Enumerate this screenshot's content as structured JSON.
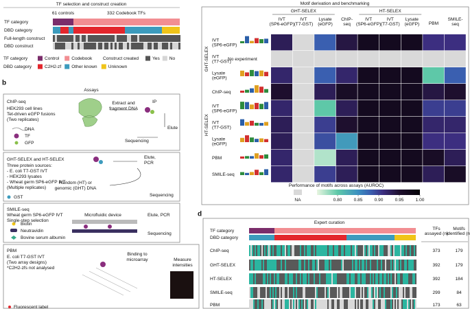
{
  "panel_a": {
    "title": "TF selection and construct creation",
    "controls_label": "61 controls",
    "codebook_label": "332 Codebook TFs",
    "rows": [
      "TF category",
      "DBD category",
      "Full-length construct",
      "DBD construct"
    ],
    "legend": {
      "tf_category": {
        "title": "TF category",
        "items": [
          {
            "label": "Control",
            "color": "#7b2d6b"
          },
          {
            "label": "Codebook",
            "color": "#f28e92"
          }
        ]
      },
      "construct": {
        "title": "Construct created",
        "items": [
          {
            "label": "Yes",
            "color": "#555555"
          },
          {
            "label": "No",
            "color": "#d6d6d6"
          }
        ]
      },
      "dbd_category": {
        "title": "DBD category",
        "items": [
          {
            "label": "C2H2-zf",
            "color": "#e3262c"
          },
          {
            "label": "Other known",
            "color": "#3c9bbd"
          },
          {
            "label": "Unknown",
            "color": "#f0c419"
          }
        ]
      }
    }
  },
  "panel_b": {
    "label": "b",
    "title": "Assays",
    "chip": {
      "title": "ChIP-seq",
      "lines": [
        "HEK293 cell lines",
        "Tet-driven eGFP fusions",
        "(Two replicates)"
      ],
      "legend": [
        "DNA",
        "TF",
        "GFP"
      ],
      "step_extract": [
        "Extract and",
        "fragment DNA"
      ],
      "step_ip": "IP",
      "step_elute": "Elute",
      "step_seq": "Sequencing"
    },
    "selex": {
      "title": "GHT-SELEX and HT-SELEX",
      "lines": [
        "Three protein sources:",
        "- E. coli T7-GST IVT",
        "- HEK293 lysates",
        "- Wheat germ SP6-eGFP IVT",
        "(Multiple replicates)"
      ],
      "legend": [
        "GST"
      ],
      "step_elute": [
        "Elute,",
        "PCR"
      ],
      "step_dna": [
        "Random (HT) or",
        "genomic (GHT) DNA"
      ],
      "step_seq": "Sequencing"
    },
    "smile": {
      "title": "SMILE-seq",
      "lines": [
        "Wheat germ SP6-eGFP IVT",
        "Single-step selection"
      ],
      "device": "Microfluidic device",
      "step_elute": "Elute, PCR",
      "step_seq": "Sequencing",
      "legend": [
        "Biotin",
        "Neutravidin",
        "Bovine serum albumin"
      ]
    },
    "pbm": {
      "title": "PBM",
      "lines": [
        "E. coli T7-GST IVT",
        "(Two array designs)",
        "*C2H2-zfs not analysed"
      ],
      "step_bind": [
        "Binding to",
        "microarray"
      ],
      "step_measure": [
        "Measure",
        "intensities"
      ],
      "legend": [
        "Fluorescent label"
      ]
    }
  },
  "panel_c": {
    "title": "Motif derivation and benchmarking",
    "column_groups": [
      "GHT-SELEX",
      "HT-SELEX"
    ],
    "columns": [
      [
        "IVT",
        "(SP6-eGFP)"
      ],
      [
        "IVT",
        "(T7-GST)"
      ],
      [
        "Lysate",
        "(eGFP)"
      ],
      [
        "ChIP-",
        "seq"
      ],
      [
        "IVT",
        "(SP6-eGFP)"
      ],
      [
        "IVT",
        "(T7-GST)"
      ],
      [
        "Lysate",
        "(eGFP)"
      ],
      [
        "PBM"
      ],
      [
        "SMILE-",
        "seq"
      ]
    ],
    "row_groups": [
      "GHT-SELEX",
      "HT-SELEX"
    ],
    "rows": [
      [
        "IVT",
        "(SP6-eGFP)"
      ],
      [
        "IVT",
        "(T7-GST)"
      ],
      [
        "Lysate",
        "(eGFP)"
      ],
      [
        "ChIP-seq"
      ],
      [
        "IVT",
        "(SP6-eGFP)"
      ],
      [
        "IVT",
        "(T7-GST)"
      ],
      [
        "Lysate",
        "(eGFP)"
      ],
      [
        "PBM"
      ],
      [
        "SMILE-seq"
      ]
    ],
    "no_experiment": "No experiment",
    "values": [
      [
        0.93,
        null,
        0.88,
        0.94,
        0.97,
        0.97,
        0.97,
        0.91,
        0.91
      ],
      [
        null,
        null,
        null,
        null,
        null,
        null,
        null,
        null,
        null
      ],
      [
        0.92,
        null,
        0.88,
        0.92,
        0.97,
        0.97,
        0.97,
        0.8,
        0.88
      ],
      [
        0.95,
        null,
        0.93,
        0.96,
        0.97,
        0.97,
        0.97,
        0.94,
        0.95
      ],
      [
        0.92,
        null,
        0.8,
        0.93,
        0.97,
        0.97,
        0.97,
        0.9,
        0.9
      ],
      [
        0.93,
        null,
        0.9,
        0.95,
        0.97,
        0.97,
        0.97,
        0.92,
        0.92
      ],
      [
        0.93,
        null,
        0.89,
        0.84,
        0.97,
        0.97,
        0.97,
        0.91,
        0.91
      ],
      [
        0.92,
        null,
        0.77,
        0.93,
        0.97,
        0.97,
        0.97,
        0.96,
        0.93
      ],
      [
        0.92,
        null,
        0.9,
        0.93,
        0.97,
        0.97,
        0.97,
        0.93,
        0.96
      ]
    ],
    "colorbar": {
      "title": "Performance of motifs across assays (AUROC)",
      "na_label": "NA",
      "na_color": "#d9d9d9",
      "range": [
        0.75,
        1.0
      ],
      "ticks": [
        {
          "value": 0.8,
          "label": "0.80"
        },
        {
          "value": 0.85,
          "label": "0.85"
        },
        {
          "value": 0.9,
          "label": "0.90"
        },
        {
          "value": 0.95,
          "label": "0.95"
        },
        {
          "value": 1,
          "label": "1.00"
        }
      ]
    }
  },
  "panel_d": {
    "label": "d",
    "title": "Expert curation",
    "rows": [
      "TF category",
      "DBD category",
      "ChIP-seq",
      "GHT-SELEX",
      "HT-SELEX",
      "SMILE-seq",
      "PBM"
    ],
    "table_header": [
      [
        "TFs",
        "assayed (n)"
      ],
      [
        "Motifs",
        "identified (n)"
      ]
    ],
    "table": [
      [
        373,
        179
      ],
      [
        392,
        179
      ],
      [
        392,
        184
      ],
      [
        299,
        84
      ],
      [
        173,
        63
      ]
    ]
  }
}
